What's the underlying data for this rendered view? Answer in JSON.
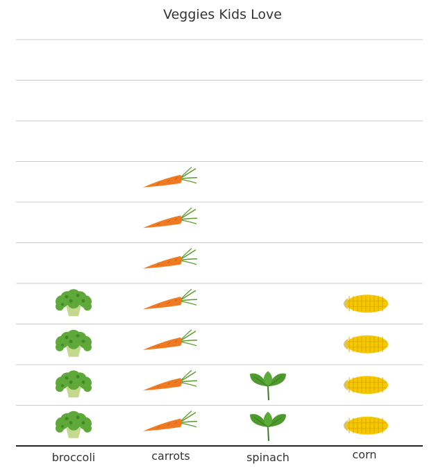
{
  "chart_data": {
    "type": "bar",
    "title": "Veggies Kids Love",
    "xlabel": "",
    "ylabel": "",
    "categories": [
      "broccoli",
      "carrots",
      "spinach",
      "corn"
    ],
    "values": [
      4,
      7,
      2,
      4
    ],
    "ylim": [
      0,
      10
    ],
    "grid": true,
    "icons": [
      "broccoli-icon",
      "carrot-icon",
      "spinach-icon",
      "corn-icon"
    ],
    "colors": {
      "gridline": "#c8c8c8",
      "baseline": "#222222",
      "carrot": "#f07a22",
      "carrot_leaf": "#5a9a2a",
      "broccoli": "#5fa83a",
      "broccoli_stem": "#c4d98e",
      "spinach": "#4f9a2e",
      "corn": "#f5c800",
      "corn_husk": "#d9c46a"
    }
  }
}
